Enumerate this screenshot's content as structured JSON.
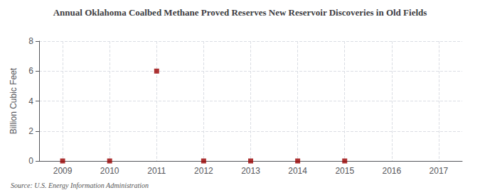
{
  "chart_data": {
    "type": "scatter",
    "title": "Annual Oklahoma Coalbed Methane Proved Reserves New Reservoir Discoveries in Old Fields",
    "ylabel": "Billion Cubic Feet",
    "annotations": [
      "Source: U.S. Energy Information Administration"
    ],
    "x": [
      2011,
      2009,
      2010,
      2012,
      2013,
      2014,
      2015
    ],
    "values": [
      6.0,
      0,
      0,
      0,
      0,
      0,
      0
    ],
    "color": "#990000",
    "marker": "square",
    "xlim": [
      2008.5,
      2017.5
    ],
    "xticks": [
      2009,
      2010,
      2011,
      2012,
      2013,
      2014,
      2015,
      2016,
      2017
    ],
    "ylim": [
      0,
      8
    ],
    "yticks": [
      0,
      2,
      4,
      6,
      8
    ],
    "grid": true
  }
}
